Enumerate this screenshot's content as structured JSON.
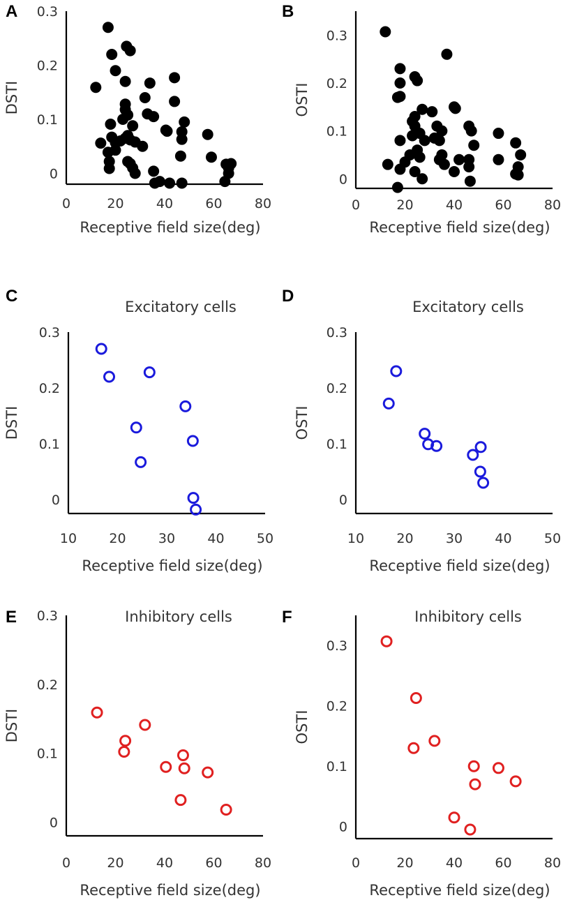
{
  "colors": {
    "panel_a_b": "#000000",
    "excitatory": "#1a1adc",
    "inhibitory": "#e02020"
  },
  "chart_data": [
    {
      "panel": "A",
      "type": "scatter",
      "title": "",
      "xlabel": "Receptive field size(deg)",
      "ylabel": "DSTI",
      "xlim": [
        0,
        80
      ],
      "ylim": [
        -0.02,
        0.3
      ],
      "xticks": [
        0,
        20,
        40,
        60,
        80
      ],
      "yticks": [
        0,
        0.1,
        0.2,
        0.3
      ],
      "yticklabels": [
        "0",
        "0.1",
        "0.2",
        "0.3"
      ],
      "marker": "filled",
      "color": "#000000",
      "points": [
        [
          17,
          0.27
        ],
        [
          18.5,
          0.22
        ],
        [
          20,
          0.19
        ],
        [
          24.5,
          0.235
        ],
        [
          26,
          0.227
        ],
        [
          24,
          0.17
        ],
        [
          12,
          0.159
        ],
        [
          44,
          0.177
        ],
        [
          34,
          0.167
        ],
        [
          32,
          0.14
        ],
        [
          24,
          0.128
        ],
        [
          44,
          0.133
        ],
        [
          24,
          0.118
        ],
        [
          25,
          0.108
        ],
        [
          23,
          0.1
        ],
        [
          33,
          0.11
        ],
        [
          35.5,
          0.105
        ],
        [
          18,
          0.091
        ],
        [
          27,
          0.088
        ],
        [
          40.5,
          0.08
        ],
        [
          41,
          0.078
        ],
        [
          47,
          0.077
        ],
        [
          48,
          0.095
        ],
        [
          47,
          0.063
        ],
        [
          57.5,
          0.072
        ],
        [
          18.5,
          0.067
        ],
        [
          20,
          0.057
        ],
        [
          14,
          0.056
        ],
        [
          22,
          0.06
        ],
        [
          24,
          0.065
        ],
        [
          25,
          0.07
        ],
        [
          26,
          0.062
        ],
        [
          28,
          0.058
        ],
        [
          31,
          0.05
        ],
        [
          17,
          0.039
        ],
        [
          20,
          0.043
        ],
        [
          17.5,
          0.022
        ],
        [
          25,
          0.022
        ],
        [
          46.5,
          0.032
        ],
        [
          59,
          0.03
        ],
        [
          17.5,
          0.009
        ],
        [
          26,
          0.018
        ],
        [
          27,
          0.01
        ],
        [
          28,
          0.0
        ],
        [
          35.5,
          0.004
        ],
        [
          36,
          -0.018
        ],
        [
          38,
          -0.015
        ],
        [
          42,
          -0.018
        ],
        [
          47,
          -0.018
        ],
        [
          65,
          0.017
        ],
        [
          66,
          0.01
        ],
        [
          67,
          0.018
        ],
        [
          66,
          0.0
        ],
        [
          64.5,
          -0.015
        ]
      ]
    },
    {
      "panel": "B",
      "type": "scatter",
      "title": "",
      "xlabel": "Receptive field size(deg)",
      "ylabel": "OSTI",
      "xlim": [
        0,
        80
      ],
      "ylim": [
        -0.02,
        0.35
      ],
      "xticks": [
        0,
        20,
        40,
        60,
        80
      ],
      "yticks": [
        0,
        0.1,
        0.2,
        0.3
      ],
      "yticklabels": [
        "0",
        "0.1",
        "0.2",
        "0.3"
      ],
      "marker": "filled",
      "color": "#000000",
      "points": [
        [
          12,
          0.307
        ],
        [
          37,
          0.26
        ],
        [
          18,
          0.23
        ],
        [
          24,
          0.213
        ],
        [
          18,
          0.2
        ],
        [
          25,
          0.205
        ],
        [
          17,
          0.17
        ],
        [
          18,
          0.172
        ],
        [
          27,
          0.145
        ],
        [
          31,
          0.14
        ],
        [
          40,
          0.15
        ],
        [
          40.5,
          0.147
        ],
        [
          23,
          0.12
        ],
        [
          24,
          0.13
        ],
        [
          24,
          0.11
        ],
        [
          33,
          0.11
        ],
        [
          46,
          0.11
        ],
        [
          23,
          0.09
        ],
        [
          26,
          0.095
        ],
        [
          35,
          0.1
        ],
        [
          47,
          0.1
        ],
        [
          32,
          0.085
        ],
        [
          34,
          0.08
        ],
        [
          58,
          0.095
        ],
        [
          18,
          0.08
        ],
        [
          28,
          0.08
        ],
        [
          48,
          0.07
        ],
        [
          65,
          0.075
        ],
        [
          25,
          0.06
        ],
        [
          22,
          0.05
        ],
        [
          26,
          0.045
        ],
        [
          34,
          0.04
        ],
        [
          35,
          0.05
        ],
        [
          42,
          0.04
        ],
        [
          46,
          0.04
        ],
        [
          58,
          0.04
        ],
        [
          67,
          0.05
        ],
        [
          13,
          0.03
        ],
        [
          20,
          0.035
        ],
        [
          36,
          0.03
        ],
        [
          18,
          0.02
        ],
        [
          24,
          0.015
        ],
        [
          40,
          0.015
        ],
        [
          46,
          0.025
        ],
        [
          66,
          0.025
        ],
        [
          27,
          0.0
        ],
        [
          46.5,
          -0.005
        ],
        [
          65,
          0.01
        ],
        [
          66,
          0.008
        ],
        [
          17,
          -0.018
        ]
      ]
    },
    {
      "panel": "C",
      "type": "scatter",
      "title": "Excitatory cells",
      "xlabel": "Receptive field size(deg)",
      "ylabel": "DSTI",
      "xlim": [
        10,
        50
      ],
      "ylim": [
        -0.025,
        0.3
      ],
      "xticks": [
        10,
        20,
        30,
        40,
        50
      ],
      "yticks": [
        0,
        0.1,
        0.2,
        0.3
      ],
      "yticklabels": [
        "0",
        "0.1",
        "0.2",
        "0.3"
      ],
      "marker": "open",
      "color": "#1a1adc",
      "points": [
        [
          16.7,
          0.27
        ],
        [
          18.3,
          0.22
        ],
        [
          26.5,
          0.228
        ],
        [
          33.8,
          0.167
        ],
        [
          23.8,
          0.129
        ],
        [
          35.3,
          0.105
        ],
        [
          24.7,
          0.067
        ],
        [
          35.4,
          0.003
        ],
        [
          35.9,
          -0.018
        ]
      ]
    },
    {
      "panel": "D",
      "type": "scatter",
      "title": "Excitatory cells",
      "xlabel": "Receptive field size(deg)",
      "ylabel": "OSTI",
      "xlim": [
        10,
        50
      ],
      "ylim": [
        -0.025,
        0.3
      ],
      "xticks": [
        10,
        20,
        30,
        40,
        50
      ],
      "yticks": [
        0,
        0.1,
        0.2,
        0.3
      ],
      "yticklabels": [
        "0",
        "0.1",
        "0.2",
        "0.3"
      ],
      "marker": "open",
      "color": "#1a1adc",
      "points": [
        [
          18.2,
          0.23
        ],
        [
          16.7,
          0.172
        ],
        [
          24,
          0.118
        ],
        [
          24.7,
          0.099
        ],
        [
          26.4,
          0.096
        ],
        [
          33.8,
          0.08
        ],
        [
          35.4,
          0.094
        ],
        [
          35.3,
          0.05
        ],
        [
          35.9,
          0.03
        ]
      ]
    },
    {
      "panel": "E",
      "type": "scatter",
      "title": "Inhibitory cells",
      "xlabel": "Receptive field size(deg)",
      "ylabel": "DSTI",
      "xlim": [
        0,
        80
      ],
      "ylim": [
        -0.02,
        0.3
      ],
      "xticks": [
        0,
        20,
        40,
        60,
        80
      ],
      "yticks": [
        0,
        0.1,
        0.2,
        0.3
      ],
      "yticklabels": [
        "0",
        "0.1",
        "0.2",
        "0.3"
      ],
      "marker": "open",
      "color": "#e02020",
      "points": [
        [
          12.5,
          0.159
        ],
        [
          32,
          0.141
        ],
        [
          24,
          0.118
        ],
        [
          23.5,
          0.102
        ],
        [
          40.5,
          0.08
        ],
        [
          47.5,
          0.097
        ],
        [
          48,
          0.078
        ],
        [
          57.5,
          0.072
        ],
        [
          46.5,
          0.032
        ],
        [
          65,
          0.018
        ]
      ]
    },
    {
      "panel": "F",
      "type": "scatter",
      "title": "Inhibitory cells",
      "xlabel": "Receptive field size(deg)",
      "ylabel": "OSTI",
      "xlim": [
        0,
        80
      ],
      "ylim": [
        -0.02,
        0.35
      ],
      "xticks": [
        0,
        20,
        40,
        60,
        80
      ],
      "yticks": [
        0,
        0.1,
        0.2,
        0.3
      ],
      "yticklabels": [
        "0",
        "0.1",
        "0.2",
        "0.3"
      ],
      "marker": "open",
      "color": "#e02020",
      "points": [
        [
          12.5,
          0.307
        ],
        [
          24.5,
          0.213
        ],
        [
          23.5,
          0.13
        ],
        [
          32,
          0.142
        ],
        [
          48,
          0.1
        ],
        [
          48.5,
          0.07
        ],
        [
          58,
          0.097
        ],
        [
          65,
          0.075
        ],
        [
          40,
          0.015
        ],
        [
          46.5,
          -0.005
        ]
      ]
    }
  ]
}
